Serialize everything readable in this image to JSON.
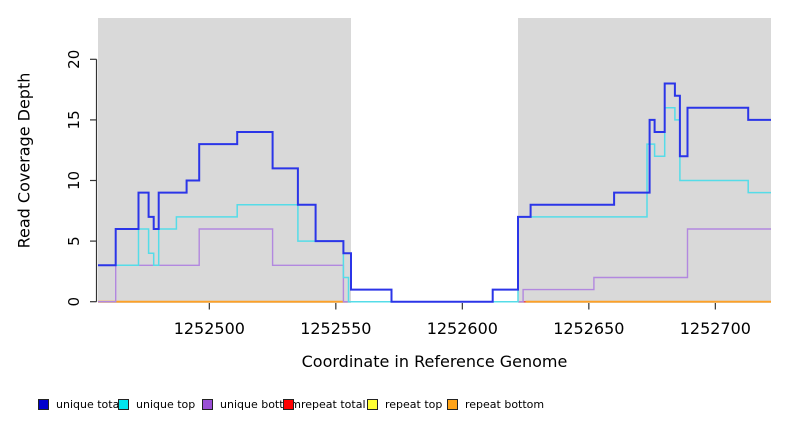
{
  "figure": {
    "x_axis_label": "Coordinate in Reference Genome",
    "y_axis_label": "Read Coverage Depth"
  },
  "legend": {
    "position": "bottom",
    "items": [
      {
        "label": "unique total",
        "swatch_color": "#0000CC"
      },
      {
        "label": "unique top",
        "swatch_color": "#00E5EE"
      },
      {
        "label": "unique bottom",
        "swatch_color": "#9A4FD6"
      },
      {
        "label": "repeat total",
        "swatch_color": "#FF0000"
      },
      {
        "label": "repeat top",
        "swatch_color": "#FFFF33"
      },
      {
        "label": "repeat bottom",
        "swatch_color": "#FFA318"
      }
    ]
  },
  "chart_data": {
    "type": "line",
    "subtype": "step",
    "title": "",
    "xlabel": "Coordinate in Reference Genome",
    "ylabel": "Read Coverage Depth",
    "xlim": [
      1252456,
      1252722
    ],
    "ylim": [
      0,
      23
    ],
    "x_ticks": [
      1252500,
      1252550,
      1252600,
      1252650,
      1252700
    ],
    "y_ticks": [
      0,
      5,
      10,
      15,
      20
    ],
    "grid": false,
    "legend_position": "bottom",
    "shaded_regions": {
      "color": "#D9D9D9",
      "ranges": [
        [
          1252456,
          1252556
        ],
        [
          1252622,
          1252722
        ]
      ]
    },
    "series": [
      {
        "name": "unique total",
        "line_color": "#2B35E8",
        "line_width": 2,
        "steps": [
          [
            1252456,
            3
          ],
          [
            1252463,
            6
          ],
          [
            1252472,
            9
          ],
          [
            1252476,
            7
          ],
          [
            1252478,
            6
          ],
          [
            1252480,
            9
          ],
          [
            1252491,
            10
          ],
          [
            1252496,
            13
          ],
          [
            1252511,
            14
          ],
          [
            1252525,
            11
          ],
          [
            1252535,
            8
          ],
          [
            1252542,
            5
          ],
          [
            1252553,
            4
          ],
          [
            1252556,
            1
          ],
          [
            1252572,
            0
          ],
          [
            1252612,
            1
          ],
          [
            1252622,
            7
          ],
          [
            1252627,
            8
          ],
          [
            1252660,
            9
          ],
          [
            1252674,
            15
          ],
          [
            1252676,
            14
          ],
          [
            1252680,
            18
          ],
          [
            1252684,
            17
          ],
          [
            1252686,
            12
          ],
          [
            1252689,
            16
          ],
          [
            1252713,
            15
          ],
          [
            1252722,
            15
          ]
        ]
      },
      {
        "name": "unique top",
        "line_color": "#55DCE8",
        "line_width": 1.5,
        "steps": [
          [
            1252456,
            3
          ],
          [
            1252472,
            6
          ],
          [
            1252476,
            4
          ],
          [
            1252478,
            3
          ],
          [
            1252480,
            6
          ],
          [
            1252487,
            7
          ],
          [
            1252511,
            8
          ],
          [
            1252535,
            5
          ],
          [
            1252553,
            2
          ],
          [
            1252555,
            0
          ],
          [
            1252622,
            7
          ],
          [
            1252673,
            13
          ],
          [
            1252676,
            12
          ],
          [
            1252680,
            16
          ],
          [
            1252684,
            15
          ],
          [
            1252686,
            10
          ],
          [
            1252713,
            9
          ],
          [
            1252722,
            9
          ]
        ]
      },
      {
        "name": "unique bottom",
        "line_color": "#B288DF",
        "line_width": 1.4,
        "steps": [
          [
            1252456,
            0
          ],
          [
            1252463,
            3
          ],
          [
            1252496,
            6
          ],
          [
            1252525,
            3
          ],
          [
            1252553,
            0
          ],
          [
            1252624,
            1
          ],
          [
            1252652,
            2
          ],
          [
            1252689,
            6
          ],
          [
            1252722,
            6
          ]
        ]
      },
      {
        "name": "repeat total",
        "line_color": "#E8485E",
        "line_width": 1.5,
        "steps": [
          [
            1252456,
            0
          ],
          [
            1252722,
            0
          ]
        ]
      },
      {
        "name": "repeat top",
        "line_color": "#F7F73B",
        "line_width": 1.5,
        "steps": [
          [
            1252456,
            0
          ],
          [
            1252722,
            0
          ]
        ]
      },
      {
        "name": "repeat bottom",
        "line_color": "#FFA126",
        "line_width": 1.8,
        "segments": [
          [
            [
              1252456,
              0
            ],
            [
              1252553,
              0
            ]
          ],
          [
            [
              1252625,
              0
            ],
            [
              1252722,
              0
            ]
          ]
        ]
      }
    ]
  }
}
